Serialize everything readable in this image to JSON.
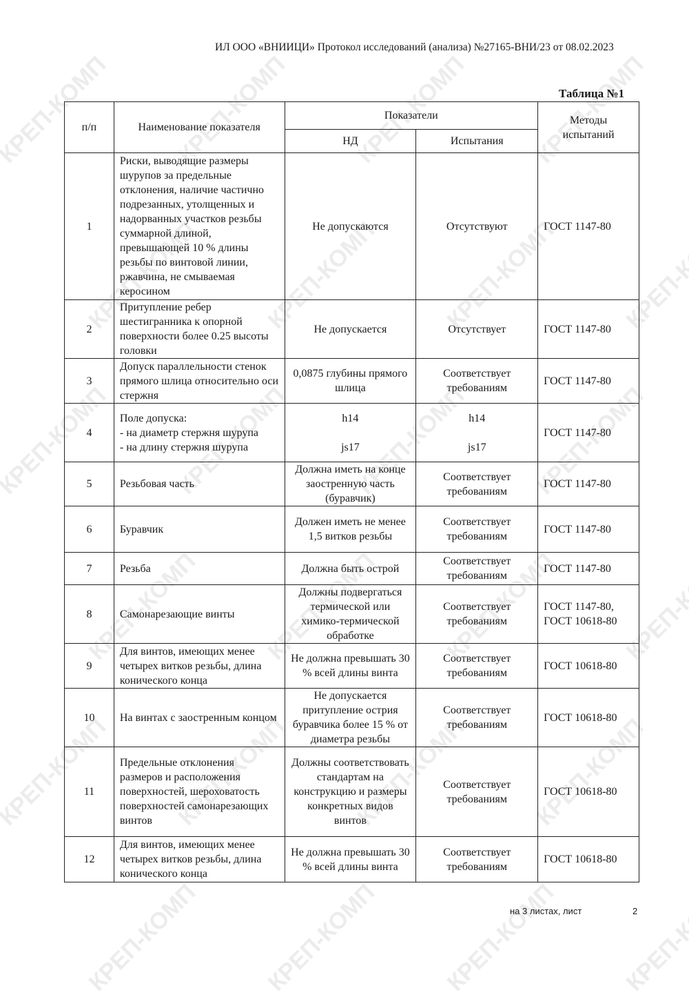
{
  "watermark": "КРЕП-КОМП",
  "header": "ИЛ ООО «ВНИИЦИ» Протокол исследований (анализа) №27165-ВНИ/23 от 08.02.2023",
  "table_title": "Таблица №1",
  "columns": {
    "num": "п/п",
    "name": "Наименование показателя",
    "indicators": "Показатели",
    "nd": "НД",
    "tests": "Испытания",
    "methods": "Методы испытаний"
  },
  "rows": [
    {
      "n": "1",
      "name": "Риски, выводящие размеры шурупов за предельные отклонения, наличие частично подрезанных, утолщенных и надорванных участков резьбы суммарной длиной, превышающей 10 % длины резьбы по винтовой линии, ржавчина, не смываемая керосином",
      "nd": "Не допускаются",
      "test": "Отсутствуют",
      "method": "ГОСТ 1147-80"
    },
    {
      "n": "2",
      "name": "Притупление ребер шестигранника к опорной поверхности более 0.25 высоты головки",
      "nd": "Не допускается",
      "test": "Отсутствует",
      "method": "ГОСТ 1147-80"
    },
    {
      "n": "3",
      "name": "Допуск параллельности стенок прямого шлица относительно оси стержня",
      "nd": "0,0875 глубины прямого шлица",
      "test": "Соответствует требованиям",
      "method": "ГОСТ 1147-80"
    },
    {
      "n": "4",
      "name": "Поле допуска:\n- на диаметр стержня шурупа\n- на длину стержня шурупа",
      "nd": "h14\n\njs17",
      "test": "h14\n\njs17",
      "method": "ГОСТ 1147-80"
    },
    {
      "n": "5",
      "name": "Резьбовая часть",
      "nd": "Должна иметь на конце заостренную часть (буравчик)",
      "test": "Соответствует требованиям",
      "method": "ГОСТ 1147-80"
    },
    {
      "n": "6",
      "name": "Буравчик",
      "nd": "Должен иметь не менее 1,5 витков резьбы",
      "test": "Соответствует требованиям",
      "method": "ГОСТ 1147-80"
    },
    {
      "n": "7",
      "name": "Резьба",
      "nd": "Должна быть острой",
      "test": "Соответствует требованиям",
      "method": "ГОСТ 1147-80"
    },
    {
      "n": "8",
      "name": "Самонарезающие винты",
      "nd": "Должны подвергаться термической или химико-термической обработке",
      "test": "Соответствует требованиям",
      "method": "ГОСТ 1147-80,\nГОСТ 10618-80"
    },
    {
      "n": "9",
      "name": "Для винтов, имеющих менее четырех витков резьбы, длина конического конца",
      "nd": "Не должна превышать 30 % всей длины винта",
      "test": "Соответствует требованиям",
      "method": "ГОСТ 10618-80"
    },
    {
      "n": "10",
      "name": "На винтах с заостренным концом",
      "nd": "Не допускается притупление острия буравчика более 15 % от диаметра резьбы",
      "test": "Соответствует требованиям",
      "method": "ГОСТ 10618-80"
    },
    {
      "n": "11",
      "name": "Предельные отклонения размеров и расположения поверхностей, шероховатость поверхностей самонарезающих винтов",
      "nd": "Должны соответствовать стандартам на конструкцию и размеры конкретных видов винтов",
      "test": "Соответствует требованиям",
      "method": "ГОСТ 10618-80"
    },
    {
      "n": "12",
      "name": "Для винтов, имеющих менее четырех витков резьбы, длина конического конца",
      "nd": "Не должна превышать 30 % всей длины винта",
      "test": "Соответствует требованиям",
      "method": "ГОСТ 10618-80"
    }
  ],
  "footer": {
    "sheets": "на 3 листах, лист",
    "page": "2"
  }
}
